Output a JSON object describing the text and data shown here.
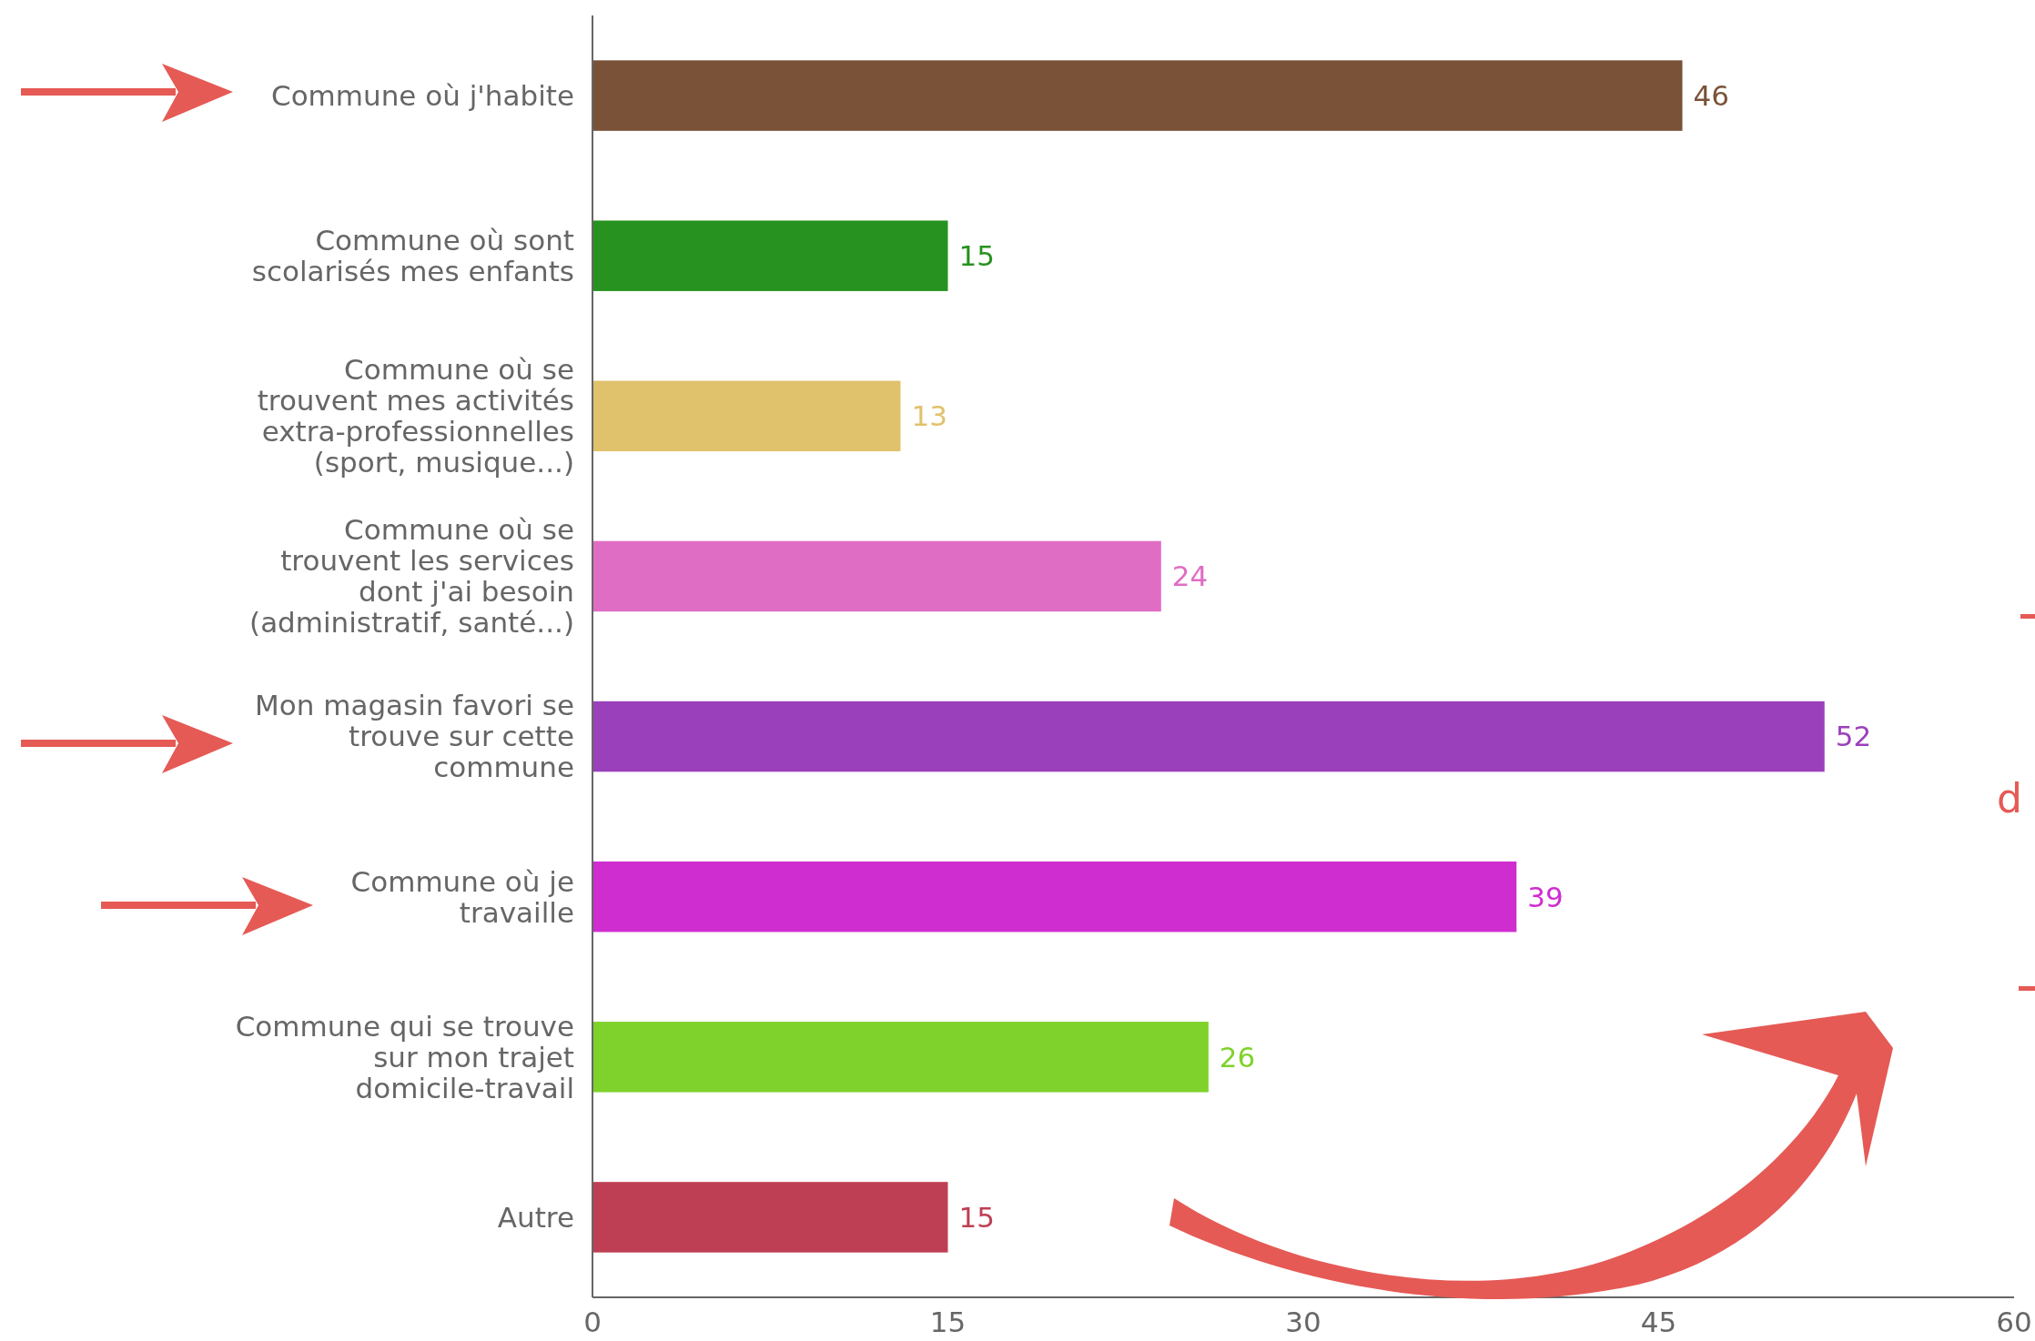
{
  "chart_data": {
    "type": "bar",
    "orientation": "horizontal",
    "categories": [
      "Commune où j'habite",
      "Commune où sont\nscolarisés mes enfants",
      "Commune où se\ntrouvent mes activités\nextra-professionnelles\n(sport, musique...)",
      "Commune où se\ntrouvent les services\ndont j'ai besoin\n(administratif, santé...)",
      "Mon magasin favori se\ntrouve sur cette\ncommune",
      "Commune où je\ntravaille",
      "Commune qui se trouve\nsur mon trajet\ndomicile-travail",
      "Autre"
    ],
    "values": [
      46,
      15,
      13,
      24,
      52,
      39,
      26,
      15
    ],
    "colors": [
      "#7a5238",
      "#27921f",
      "#e0c26d",
      "#e06dc4",
      "#9b40bb",
      "#cf2dd0",
      "#7fd22b",
      "#be3f53"
    ],
    "xlim": [
      0,
      60
    ],
    "xticks": [
      0,
      15,
      30,
      45,
      60
    ],
    "data_labels": true,
    "grid": false,
    "annotations": [
      "d"
    ]
  }
}
